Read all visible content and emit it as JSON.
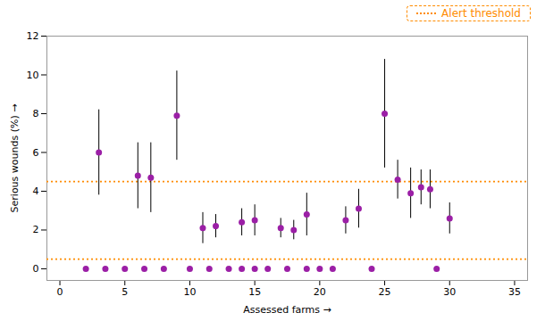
{
  "chart_data": {
    "type": "scatter",
    "xlabel": "Assessed farms",
    "ylabel": "Serious wounds (%)",
    "xlim": [
      -1,
      36
    ],
    "ylim": [
      -0.6,
      12
    ],
    "xticks": [
      0,
      5,
      10,
      15,
      20,
      25,
      30,
      35
    ],
    "yticks": [
      0,
      2,
      4,
      6,
      8,
      10,
      12
    ],
    "series": [
      {
        "x": [
          3,
          6,
          7,
          9,
          11,
          12,
          14,
          15,
          17,
          18,
          19,
          22,
          23,
          25,
          26,
          27,
          27.8,
          28.5,
          30
        ],
        "values": [
          6.0,
          4.8,
          4.7,
          7.9,
          2.1,
          2.2,
          2.4,
          2.5,
          2.1,
          2.0,
          2.8,
          2.5,
          3.1,
          8.0,
          4.6,
          3.9,
          4.2,
          4.1,
          2.6
        ],
        "yerr": [
          2.2,
          1.7,
          1.8,
          2.3,
          0.8,
          0.6,
          0.7,
          0.8,
          0.5,
          0.5,
          1.1,
          0.7,
          1.0,
          2.8,
          1.0,
          1.3,
          0.9,
          1.0,
          0.8
        ],
        "color": "#9B1FA6",
        "marker": "circle"
      },
      {
        "x": [
          2,
          3.5,
          5,
          6.5,
          8,
          10,
          11.5,
          13,
          14,
          15,
          16,
          17.5,
          19,
          20,
          21,
          24,
          29
        ],
        "values": [
          0,
          0,
          0,
          0,
          0,
          0,
          0,
          0,
          0,
          0,
          0,
          0,
          0,
          0,
          0,
          0,
          0
        ],
        "color": "#9B1FA6",
        "marker": "circle"
      }
    ],
    "reference_lines": {
      "values": [
        4.5,
        0.5
      ],
      "color": "#FF8C00",
      "line_style": "dotted",
      "label": "Alert threshold"
    },
    "legend": "upper right"
  }
}
